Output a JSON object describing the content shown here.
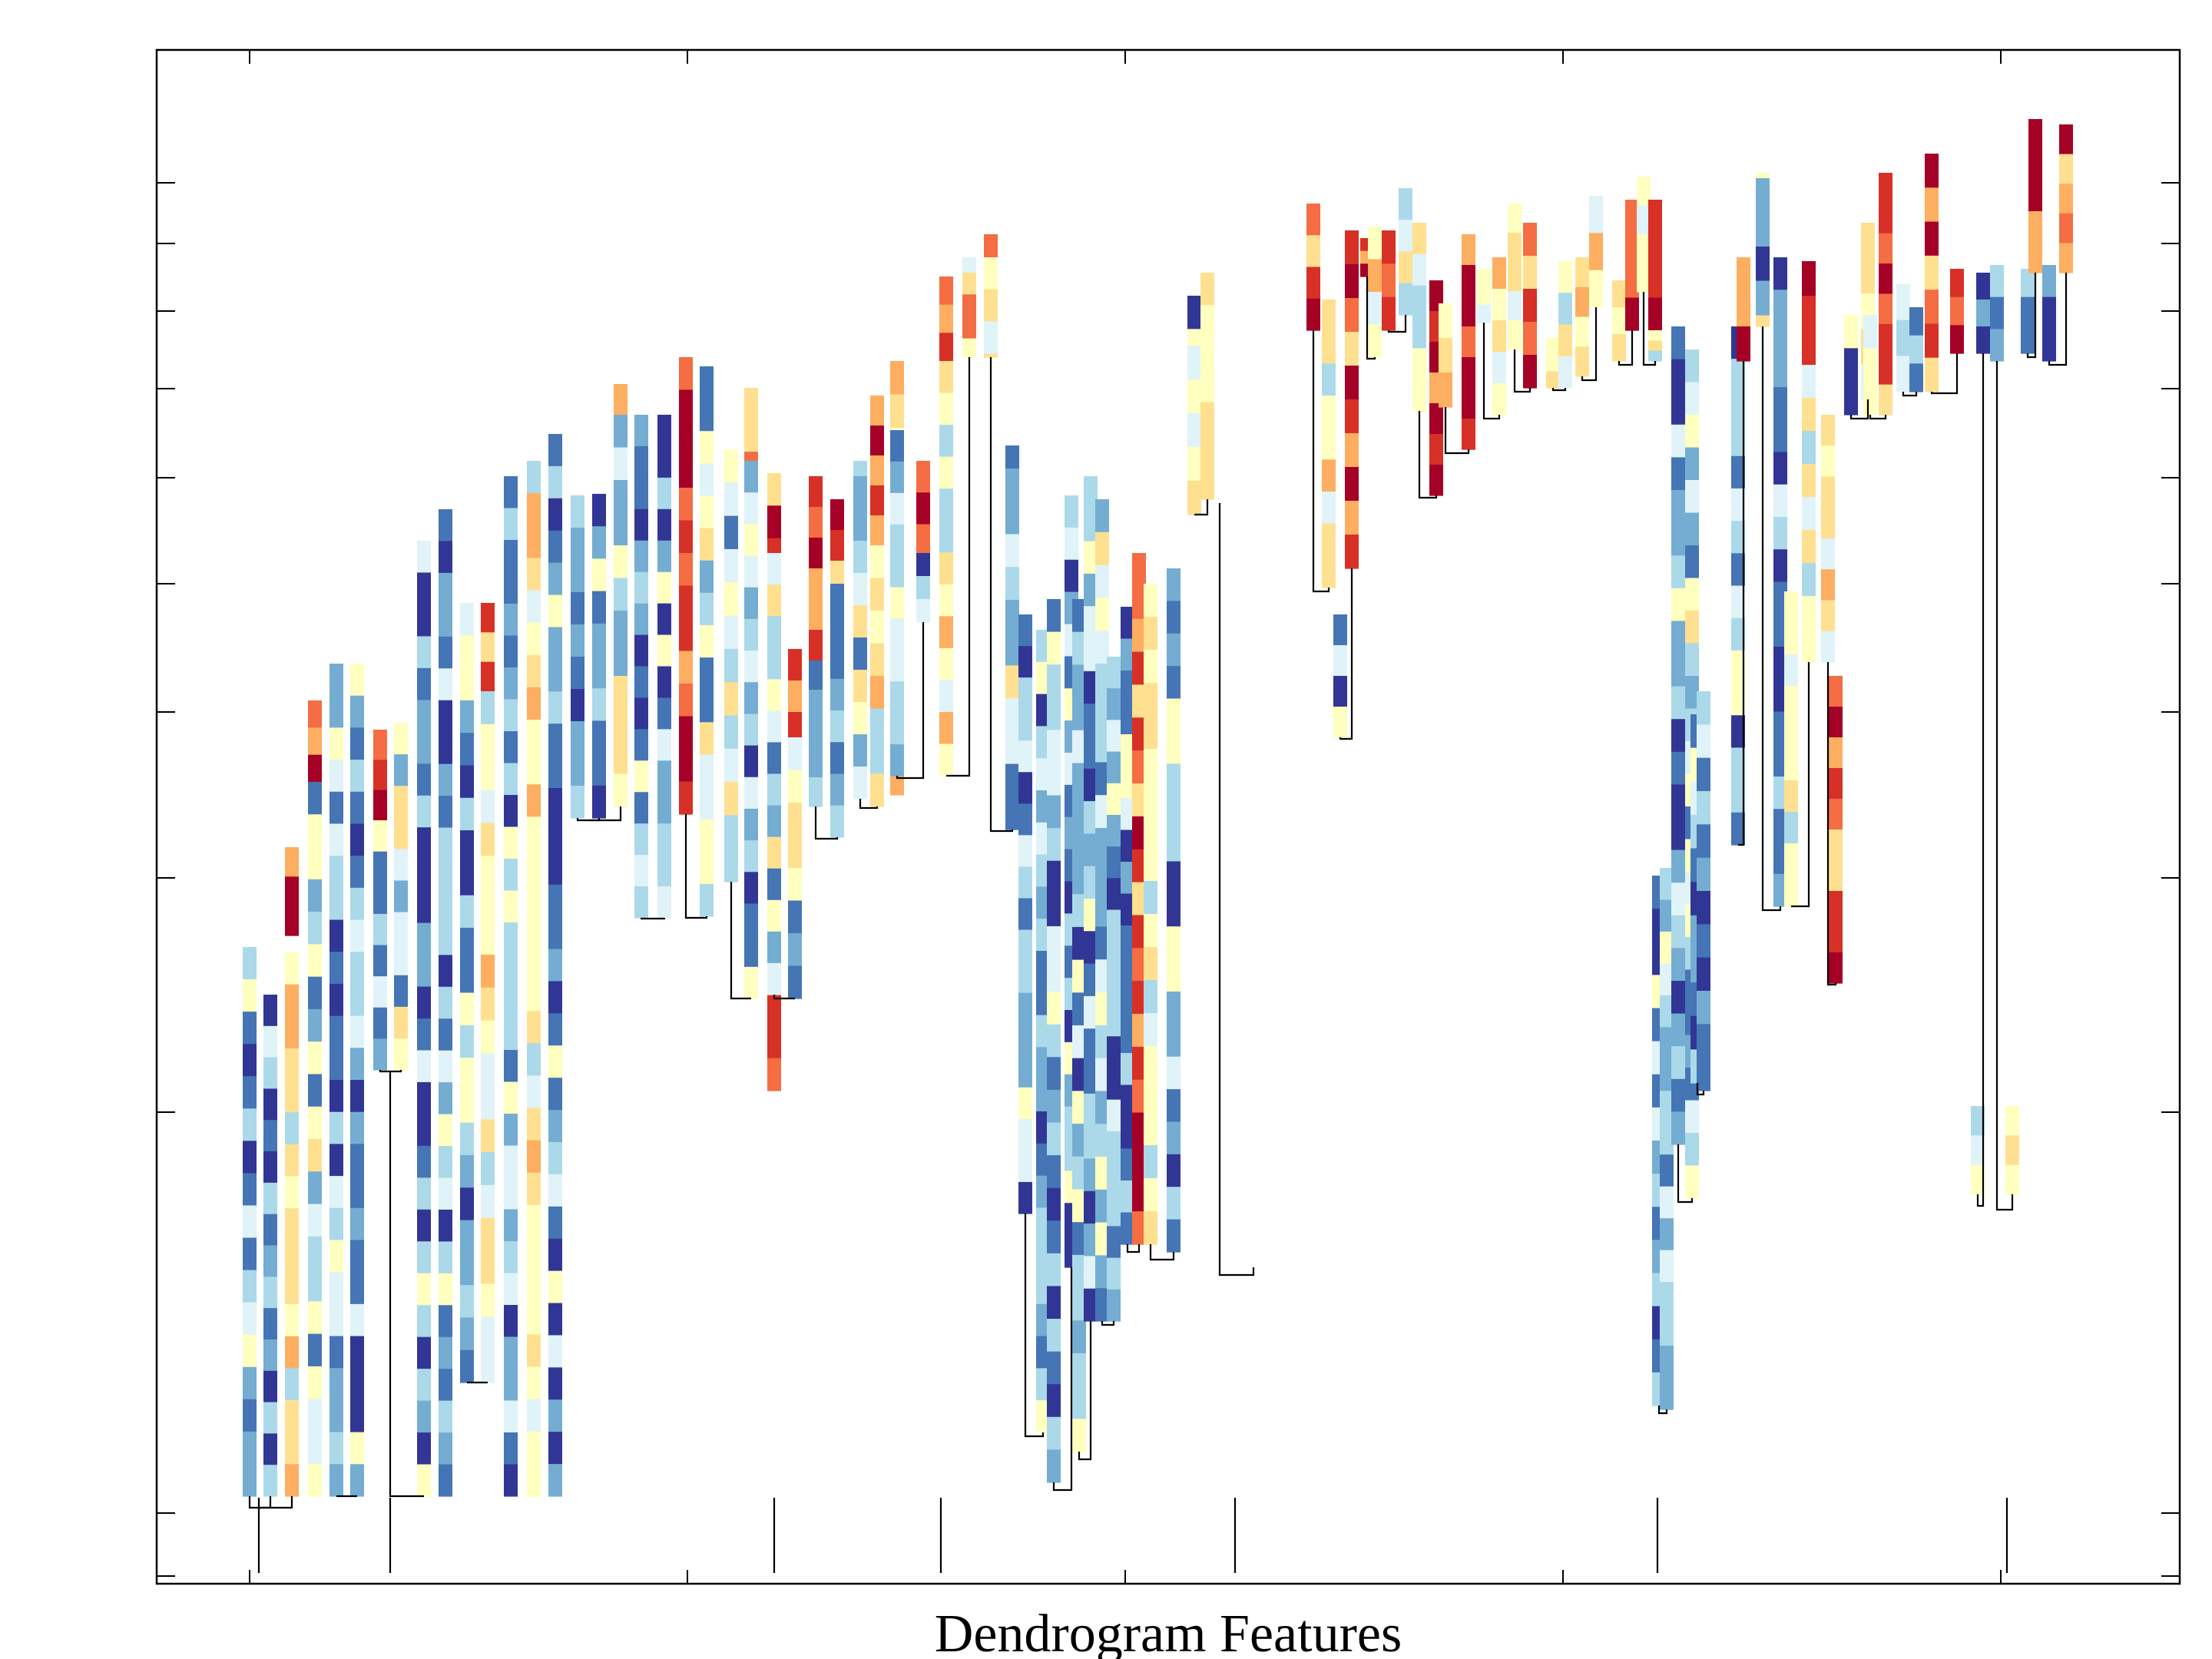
{
  "chart_data": {
    "type": "dendrogram",
    "title": "",
    "xlabel": "Dendrogram Features",
    "ylabel": "",
    "grid": false,
    "legend": "none",
    "colormap": [
      "#313695",
      "#4575b4",
      "#74add1",
      "#abd9e9",
      "#e0f3f8",
      "#ffffbf",
      "#fee090",
      "#fdae61",
      "#f46d43",
      "#d73027",
      "#a50026"
    ],
    "branch_color": "#000000"
  }
}
